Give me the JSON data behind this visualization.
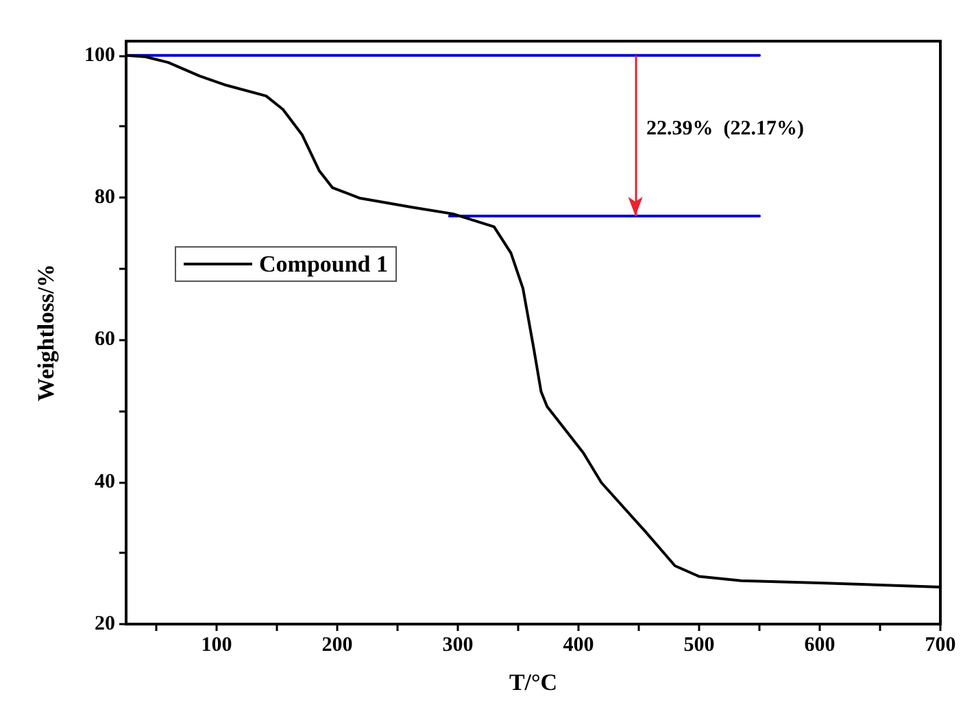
{
  "chart_data": {
    "type": "line",
    "xlabel": "T/°C",
    "ylabel": "Weightloss/%",
    "xlim": [
      25,
      700
    ],
    "ylim": [
      20,
      102
    ],
    "xticks": [
      {
        "value": 50,
        "label": null
      },
      100,
      {
        "value": 150,
        "label": null
      },
      200,
      {
        "value": 250,
        "label": null
      },
      300,
      {
        "value": 350,
        "label": null
      },
      400,
      {
        "value": 450,
        "label": null
      },
      500,
      {
        "value": 550,
        "label": null
      },
      600,
      {
        "value": 650,
        "label": null
      },
      700
    ],
    "yticks": [
      20,
      {
        "value": 30,
        "label": null
      },
      40,
      {
        "value": 50,
        "label": null
      },
      60,
      {
        "value": 70,
        "label": null
      },
      80,
      {
        "value": 90,
        "label": null
      },
      100
    ],
    "series": [
      {
        "name": "Compound 1",
        "color": "#000000",
        "x": [
          25,
          41,
          60,
          86,
          108,
          141,
          155,
          171,
          185,
          196,
          219,
          263,
          296,
          330,
          344,
          354,
          363,
          369,
          374,
          404,
          419,
          455,
          480,
          500,
          535,
          600,
          700
        ],
        "values": [
          100,
          99.8,
          99,
          97.1,
          95.8,
          94.3,
          92.4,
          88.8,
          83.8,
          81.4,
          79.9,
          78.6,
          77.7,
          75.9,
          72.2,
          67.2,
          58.7,
          52.7,
          50.6,
          44.1,
          39.9,
          33.1,
          28.2,
          26.7,
          26.1,
          25.8,
          25.2
        ]
      },
      {
        "color": "#0000cc",
        "x": [
          25,
          550
        ],
        "values": [
          100,
          100
        ]
      },
      {
        "color": "#0000cc",
        "x": [
          293,
          550
        ],
        "values": [
          77.4,
          77.4
        ]
      }
    ],
    "annotations": [
      "22.39%  (22.17%)"
    ],
    "legend": "left",
    "grid": false,
    "marker": "none",
    "line_style": "solid"
  }
}
